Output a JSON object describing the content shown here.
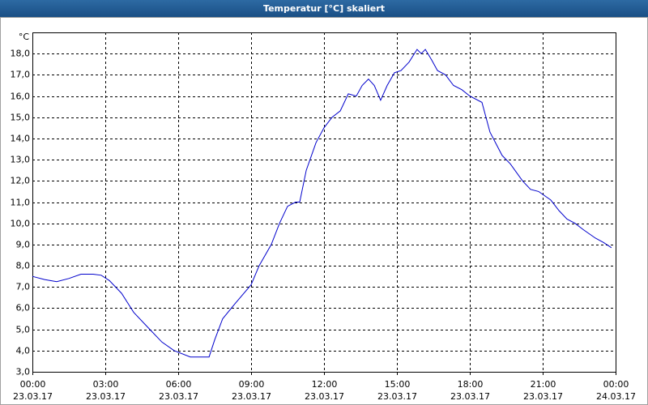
{
  "chart_data": {
    "type": "line",
    "title": "Temperatur [°C] skaliert",
    "y_label": "°C",
    "color": "#0000cc",
    "grid": true,
    "x": [
      0,
      0.5,
      1,
      1.5,
      2,
      2.5,
      2.83,
      3.17,
      3.67,
      4.17,
      4.83,
      5.33,
      5.83,
      6.5,
      7.27,
      7.5,
      7.83,
      8.33,
      9,
      9.33,
      9.83,
      10.17,
      10.5,
      10.83,
      11,
      11.27,
      11.67,
      12,
      12.33,
      12.67,
      13,
      13.33,
      13.57,
      13.83,
      14.07,
      14.33,
      14.6,
      14.9,
      15.17,
      15.5,
      15.83,
      16,
      16.17,
      16.43,
      16.67,
      17,
      17.33,
      17.67,
      18,
      18.5,
      18.83,
      19.33,
      19.67,
      20.17,
      20.5,
      20.83,
      21.33,
      21.67,
      22,
      22.33,
      22.67,
      23.17,
      23.5,
      23.83
    ],
    "values": [
      7.5,
      7.35,
      7.25,
      7.4,
      7.6,
      7.6,
      7.55,
      7.3,
      6.7,
      5.8,
      5.0,
      4.4,
      4.0,
      3.7,
      3.7,
      4.5,
      5.5,
      6.2,
      7.1,
      8.0,
      9.0,
      10.0,
      10.8,
      11.0,
      11.0,
      12.5,
      13.8,
      14.5,
      15.0,
      15.3,
      16.1,
      16.0,
      16.5,
      16.8,
      16.5,
      15.8,
      16.5,
      17.1,
      17.2,
      17.6,
      18.2,
      18.0,
      18.2,
      17.7,
      17.2,
      17.0,
      16.5,
      16.3,
      16.0,
      15.7,
      14.3,
      13.2,
      12.8,
      12.0,
      11.6,
      11.5,
      11.1,
      10.6,
      10.2,
      10.0,
      9.7,
      9.3,
      9.1,
      8.85
    ],
    "xlim": [
      0,
      24
    ],
    "xticks": [
      {
        "value": 0,
        "label": "00:00\n23.03.17"
      },
      {
        "value": 3,
        "label": "03:00\n23.03.17"
      },
      {
        "value": 6,
        "label": "06:00\n23.03.17"
      },
      {
        "value": 9,
        "label": "09:00\n23.03.17"
      },
      {
        "value": 12,
        "label": "12:00\n23.03.17"
      },
      {
        "value": 15,
        "label": "15:00\n23.03.17"
      },
      {
        "value": 18,
        "label": "18:00\n23.03.17"
      },
      {
        "value": 21,
        "label": "21:00\n23.03.17"
      },
      {
        "value": 24,
        "label": "00:00\n24.03.17"
      }
    ],
    "ylim": [
      3,
      19
    ],
    "yticks": [
      {
        "value": 3,
        "label": "3,0"
      },
      {
        "value": 4,
        "label": "4,0"
      },
      {
        "value": 5,
        "label": "5,0"
      },
      {
        "value": 6,
        "label": "6,0"
      },
      {
        "value": 7,
        "label": "7,0"
      },
      {
        "value": 8,
        "label": "8,0"
      },
      {
        "value": 9,
        "label": "9,0"
      },
      {
        "value": 10,
        "label": "10,0"
      },
      {
        "value": 11,
        "label": "11,0"
      },
      {
        "value": 12,
        "label": "12,0"
      },
      {
        "value": 13,
        "label": "13,0"
      },
      {
        "value": 14,
        "label": "14,0"
      },
      {
        "value": 15,
        "label": "15,0"
      },
      {
        "value": 16,
        "label": "16,0"
      },
      {
        "value": 17,
        "label": "17,0"
      },
      {
        "value": 18,
        "label": "18,0"
      }
    ]
  }
}
